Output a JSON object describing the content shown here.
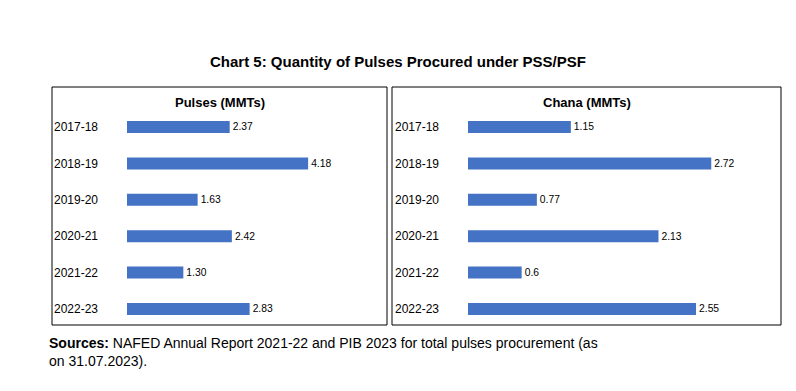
{
  "title": "Chart 5: Quantity of Pulses Procured under PSS/PSF",
  "source_label": "Sources:",
  "source": "NAFED Annual Report 2021-22 and PIB 2023 for total pulses procurement (as on 31.07.2023).",
  "chart_data": [
    {
      "type": "bar",
      "orientation": "horizontal",
      "title": "Pulses (MMTs)",
      "categories": [
        "2017-18",
        "2018-19",
        "2019-20",
        "2020-21",
        "2021-22",
        "2022-23"
      ],
      "values": [
        2.37,
        4.18,
        1.63,
        2.42,
        1.3,
        2.83
      ],
      "value_labels": [
        "2.37",
        "4.18",
        "1.63",
        "2.42",
        "1.30",
        "2.83"
      ],
      "color": "#4472c4",
      "xlim": [
        0,
        6
      ],
      "grid": false,
      "data_labels": true,
      "tick_labels": "y"
    },
    {
      "type": "bar",
      "orientation": "horizontal",
      "title": "Chana (MMTs)",
      "categories": [
        "2017-18",
        "2018-19",
        "2019-20",
        "2020-21",
        "2021-22",
        "2022-23"
      ],
      "values": [
        1.15,
        2.72,
        0.77,
        2.13,
        0.6,
        2.55
      ],
      "color": "#4472c4",
      "xlim": [
        0,
        3.5
      ],
      "grid": false,
      "data_labels": true,
      "tick_labels": "y"
    }
  ]
}
